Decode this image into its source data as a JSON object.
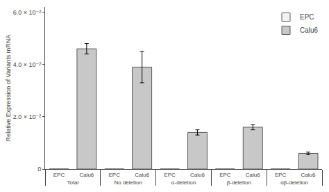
{
  "chart_data": {
    "type": "bar",
    "ylabel": "Relative Expression of Variants mRNA",
    "categories": [
      "Total",
      "No deletion",
      "α-deletion",
      "β-deletion",
      "αβ-deletion"
    ],
    "series": [
      {
        "name": "EPC",
        "color": "#f2f2f2",
        "values": [
          0.0,
          0.0,
          0.0,
          0.0,
          0.0
        ]
      },
      {
        "name": "Calu6",
        "color": "#c8c8c8",
        "values": [
          0.046,
          0.039,
          0.014,
          0.016,
          0.006
        ],
        "errors": [
          0.002,
          0.006,
          0.001,
          0.001,
          0.0005
        ]
      }
    ],
    "ylim": [
      0,
      0.062
    ],
    "yticks": [
      0,
      {
        "value": 0.02,
        "label": "2.0 × 10⁻²"
      },
      {
        "value": 0.04,
        "label": "4.0 × 10⁻²"
      },
      {
        "value": 0.06,
        "label": "6.0 × 10⁻²"
      }
    ],
    "grid": false,
    "legend": "upper right"
  }
}
